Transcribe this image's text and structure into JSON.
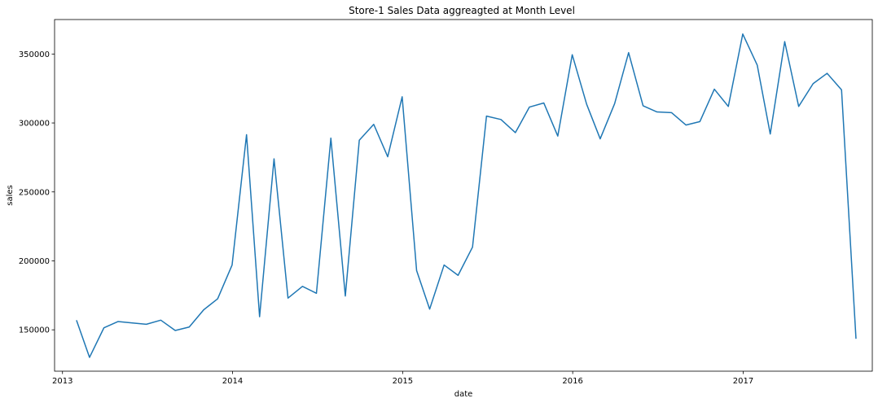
{
  "chart_data": {
    "type": "line",
    "title": "Store-1 Sales Data aggreagted at Month Level",
    "xlabel": "date",
    "ylabel": "sales",
    "x_ticks": [
      "2013",
      "2014",
      "2015",
      "2016",
      "2017"
    ],
    "y_ticks": [
      "150000",
      "200000",
      "250000",
      "300000",
      "350000"
    ],
    "y_tick_values": [
      150000,
      200000,
      250000,
      300000,
      350000
    ],
    "ylim": [
      120000,
      375000
    ],
    "xlim": [
      "2012-12-15",
      "2017-10-05"
    ],
    "grid": false,
    "series": [
      {
        "color": "#1f77b4",
        "x": [
          "2013-01-31",
          "2013-02-28",
          "2013-03-31",
          "2013-04-30",
          "2013-05-31",
          "2013-06-30",
          "2013-07-31",
          "2013-08-31",
          "2013-09-30",
          "2013-10-31",
          "2013-11-30",
          "2013-12-31",
          "2014-01-31",
          "2014-02-28",
          "2014-03-31",
          "2014-04-30",
          "2014-05-31",
          "2014-06-30",
          "2014-07-31",
          "2014-08-31",
          "2014-09-30",
          "2014-10-31",
          "2014-11-30",
          "2014-12-31",
          "2015-01-31",
          "2015-02-28",
          "2015-03-31",
          "2015-04-30",
          "2015-05-31",
          "2015-06-30",
          "2015-07-31",
          "2015-08-31",
          "2015-09-30",
          "2015-10-31",
          "2015-11-30",
          "2015-12-31",
          "2016-01-31",
          "2016-02-29",
          "2016-03-31",
          "2016-04-30",
          "2016-05-31",
          "2016-06-30",
          "2016-07-31",
          "2016-08-31",
          "2016-09-30",
          "2016-10-31",
          "2016-11-30",
          "2016-12-31",
          "2017-01-31",
          "2017-02-28",
          "2017-03-31",
          "2017-04-30",
          "2017-05-31",
          "2017-06-30",
          "2017-07-31",
          "2017-08-31"
        ],
        "values": [
          157000,
          130000,
          151500,
          156000,
          155000,
          154000,
          157000,
          149500,
          152000,
          164500,
          172500,
          197000,
          291500,
          159500,
          274000,
          173000,
          181500,
          176500,
          289000,
          174500,
          287500,
          299000,
          275500,
          319000,
          193000,
          165000,
          197000,
          189500,
          210000,
          305000,
          302500,
          293000,
          311500,
          314500,
          290500,
          349500,
          313500,
          288500,
          314000,
          351000,
          312500,
          308000,
          307500,
          298500,
          301000,
          324500,
          312000,
          364500,
          342000,
          292000,
          359000,
          312000,
          328500,
          336000,
          324000,
          143500
        ]
      }
    ]
  }
}
